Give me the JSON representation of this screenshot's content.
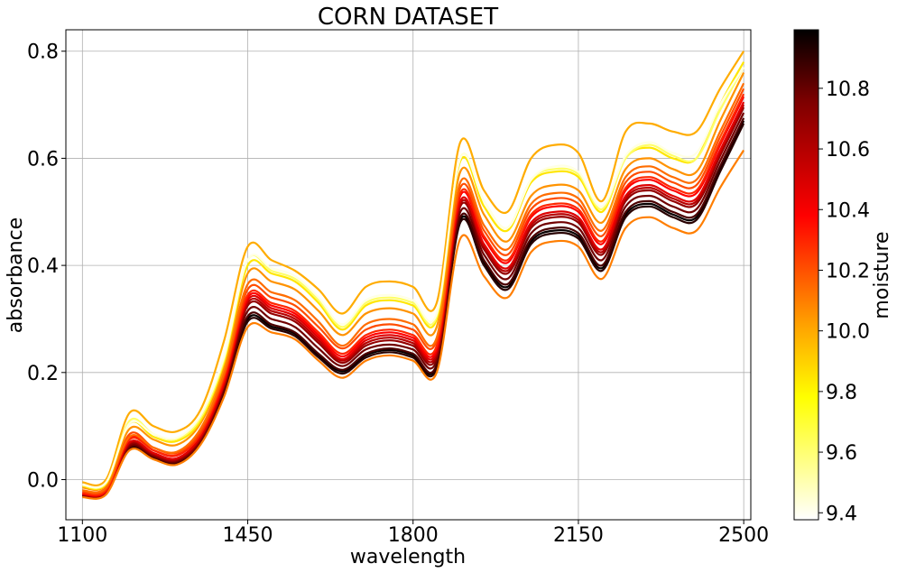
{
  "chart_data": {
    "type": "line",
    "title": "CORN DATASET",
    "xlabel": "wavelength",
    "ylabel": "absorbance",
    "xlim": [
      1065,
      2515
    ],
    "ylim": [
      -0.075,
      0.84
    ],
    "xticks": [
      1100,
      1450,
      1800,
      2150,
      2500
    ],
    "yticks": [
      0.0,
      0.2,
      0.4,
      0.6,
      0.8
    ],
    "ytick_labels": [
      "0.0",
      "0.2",
      "0.4",
      "0.6",
      "0.8"
    ],
    "grid": true,
    "colormap": "hot",
    "colorbar": {
      "label": "moisture",
      "range": [
        9.377,
        10.993
      ],
      "ticks": [
        9.4,
        9.6,
        9.8,
        10.0,
        10.2,
        10.4,
        10.6,
        10.8
      ],
      "tick_labels": [
        "9.4",
        "9.6",
        "9.8",
        "10.0",
        "10.2",
        "10.4",
        "10.6",
        "10.8"
      ]
    },
    "x": [
      1100,
      1150,
      1200,
      1250,
      1300,
      1350,
      1400,
      1450,
      1500,
      1550,
      1600,
      1650,
      1700,
      1750,
      1800,
      1850,
      1900,
      1950,
      2000,
      2050,
      2100,
      2150,
      2200,
      2250,
      2300,
      2350,
      2400,
      2450,
      2500
    ],
    "series": [
      {
        "moisture": 9.42,
        "values": [
          -0.01,
          -0.005,
          0.105,
          0.085,
          0.078,
          0.12,
          0.23,
          0.41,
          0.395,
          0.38,
          0.34,
          0.29,
          0.335,
          0.345,
          0.335,
          0.31,
          0.6,
          0.52,
          0.47,
          0.56,
          0.585,
          0.575,
          0.51,
          0.605,
          0.63,
          0.61,
          0.61,
          0.7,
          0.77
        ]
      },
      {
        "moisture": 9.62,
        "values": [
          -0.01,
          -0.006,
          0.11,
          0.085,
          0.076,
          0.115,
          0.225,
          0.41,
          0.39,
          0.375,
          0.335,
          0.285,
          0.33,
          0.34,
          0.33,
          0.305,
          0.6,
          0.52,
          0.47,
          0.56,
          0.58,
          0.57,
          0.505,
          0.6,
          0.625,
          0.605,
          0.6,
          0.69,
          0.77
        ]
      },
      {
        "moisture": 9.85,
        "values": [
          -0.012,
          -0.008,
          0.105,
          0.08,
          0.072,
          0.11,
          0.22,
          0.4,
          0.385,
          0.37,
          0.33,
          0.28,
          0.325,
          0.335,
          0.325,
          0.3,
          0.595,
          0.51,
          0.465,
          0.555,
          0.575,
          0.565,
          0.5,
          0.6,
          0.62,
          0.6,
          0.6,
          0.7,
          0.78
        ]
      },
      {
        "moisture": 9.99,
        "values": [
          -0.005,
          0.0,
          0.125,
          0.1,
          0.09,
          0.13,
          0.26,
          0.435,
          0.41,
          0.39,
          0.355,
          0.31,
          0.36,
          0.37,
          0.36,
          0.33,
          0.63,
          0.54,
          0.5,
          0.6,
          0.625,
          0.61,
          0.52,
          0.65,
          0.665,
          0.65,
          0.65,
          0.73,
          0.8
        ]
      },
      {
        "moisture": 10.05,
        "values": [
          -0.015,
          -0.01,
          0.095,
          0.075,
          0.065,
          0.105,
          0.21,
          0.385,
          0.37,
          0.355,
          0.315,
          0.27,
          0.31,
          0.32,
          0.31,
          0.285,
          0.575,
          0.495,
          0.445,
          0.53,
          0.55,
          0.54,
          0.48,
          0.58,
          0.6,
          0.58,
          0.575,
          0.67,
          0.76
        ]
      },
      {
        "moisture": 10.14,
        "values": [
          -0.02,
          -0.015,
          0.08,
          0.06,
          0.052,
          0.095,
          0.2,
          0.365,
          0.35,
          0.335,
          0.295,
          0.25,
          0.29,
          0.3,
          0.29,
          0.265,
          0.555,
          0.475,
          0.43,
          0.515,
          0.535,
          0.525,
          0.465,
          0.565,
          0.585,
          0.565,
          0.56,
          0.65,
          0.74
        ]
      },
      {
        "moisture": 10.22,
        "values": [
          -0.022,
          -0.017,
          0.085,
          0.06,
          0.05,
          0.09,
          0.195,
          0.355,
          0.34,
          0.325,
          0.285,
          0.245,
          0.28,
          0.29,
          0.28,
          0.26,
          0.545,
          0.465,
          0.42,
          0.505,
          0.525,
          0.515,
          0.455,
          0.555,
          0.575,
          0.555,
          0.55,
          0.64,
          0.73
        ]
      },
      {
        "moisture": 10.31,
        "values": [
          -0.025,
          -0.02,
          0.075,
          0.055,
          0.046,
          0.085,
          0.19,
          0.345,
          0.33,
          0.315,
          0.275,
          0.235,
          0.27,
          0.28,
          0.27,
          0.25,
          0.535,
          0.455,
          0.41,
          0.495,
          0.515,
          0.505,
          0.445,
          0.545,
          0.565,
          0.545,
          0.54,
          0.63,
          0.72
        ]
      },
      {
        "moisture": 10.4,
        "values": [
          -0.026,
          -0.021,
          0.078,
          0.055,
          0.045,
          0.085,
          0.185,
          0.34,
          0.325,
          0.31,
          0.27,
          0.23,
          0.265,
          0.275,
          0.265,
          0.245,
          0.53,
          0.45,
          0.405,
          0.49,
          0.51,
          0.5,
          0.44,
          0.54,
          0.56,
          0.54,
          0.535,
          0.625,
          0.715
        ]
      },
      {
        "moisture": 10.48,
        "values": [
          -0.027,
          -0.022,
          0.07,
          0.05,
          0.04,
          0.08,
          0.18,
          0.335,
          0.32,
          0.305,
          0.265,
          0.225,
          0.26,
          0.27,
          0.26,
          0.24,
          0.52,
          0.44,
          0.395,
          0.48,
          0.5,
          0.49,
          0.43,
          0.53,
          0.55,
          0.53,
          0.525,
          0.615,
          0.705
        ]
      },
      {
        "moisture": 10.57,
        "values": [
          -0.028,
          -0.023,
          0.068,
          0.048,
          0.038,
          0.078,
          0.178,
          0.33,
          0.315,
          0.3,
          0.26,
          0.222,
          0.255,
          0.265,
          0.255,
          0.235,
          0.515,
          0.435,
          0.39,
          0.475,
          0.495,
          0.485,
          0.425,
          0.525,
          0.545,
          0.525,
          0.52,
          0.61,
          0.7
        ]
      },
      {
        "moisture": 10.65,
        "values": [
          -0.029,
          -0.024,
          0.065,
          0.046,
          0.036,
          0.075,
          0.175,
          0.325,
          0.31,
          0.295,
          0.255,
          0.218,
          0.25,
          0.26,
          0.25,
          0.23,
          0.51,
          0.43,
          0.385,
          0.47,
          0.49,
          0.48,
          0.42,
          0.52,
          0.54,
          0.52,
          0.515,
          0.605,
          0.695
        ]
      },
      {
        "moisture": 10.73,
        "values": [
          -0.03,
          -0.025,
          0.062,
          0.044,
          0.034,
          0.072,
          0.17,
          0.315,
          0.3,
          0.285,
          0.245,
          0.212,
          0.243,
          0.252,
          0.243,
          0.223,
          0.5,
          0.42,
          0.375,
          0.46,
          0.48,
          0.47,
          0.41,
          0.51,
          0.53,
          0.51,
          0.505,
          0.595,
          0.685
        ]
      },
      {
        "moisture": 10.82,
        "values": [
          -0.031,
          -0.026,
          0.06,
          0.042,
          0.032,
          0.07,
          0.165,
          0.305,
          0.29,
          0.275,
          0.235,
          0.205,
          0.235,
          0.245,
          0.235,
          0.215,
          0.49,
          0.41,
          0.365,
          0.45,
          0.47,
          0.46,
          0.4,
          0.5,
          0.52,
          0.5,
          0.495,
          0.585,
          0.675
        ]
      },
      {
        "moisture": 10.9,
        "values": [
          -0.032,
          -0.027,
          0.058,
          0.04,
          0.03,
          0.068,
          0.16,
          0.295,
          0.282,
          0.268,
          0.228,
          0.198,
          0.228,
          0.238,
          0.228,
          0.208,
          0.48,
          0.4,
          0.355,
          0.44,
          0.46,
          0.45,
          0.39,
          0.49,
          0.51,
          0.49,
          0.485,
          0.575,
          0.665
        ]
      },
      {
        "moisture": 10.98,
        "values": [
          -0.03,
          -0.025,
          0.062,
          0.043,
          0.033,
          0.07,
          0.163,
          0.3,
          0.286,
          0.272,
          0.232,
          0.202,
          0.232,
          0.242,
          0.232,
          0.212,
          0.485,
          0.405,
          0.36,
          0.445,
          0.465,
          0.455,
          0.395,
          0.495,
          0.515,
          0.495,
          0.49,
          0.58,
          0.67
        ]
      },
      {
        "moisture": 10.1,
        "values": [
          -0.033,
          -0.028,
          0.055,
          0.038,
          0.028,
          0.065,
          0.155,
          0.285,
          0.275,
          0.262,
          0.222,
          0.19,
          0.222,
          0.232,
          0.222,
          0.2,
          0.45,
          0.38,
          0.34,
          0.425,
          0.445,
          0.435,
          0.375,
          0.47,
          0.49,
          0.47,
          0.465,
          0.545,
          0.615
        ]
      }
    ]
  }
}
